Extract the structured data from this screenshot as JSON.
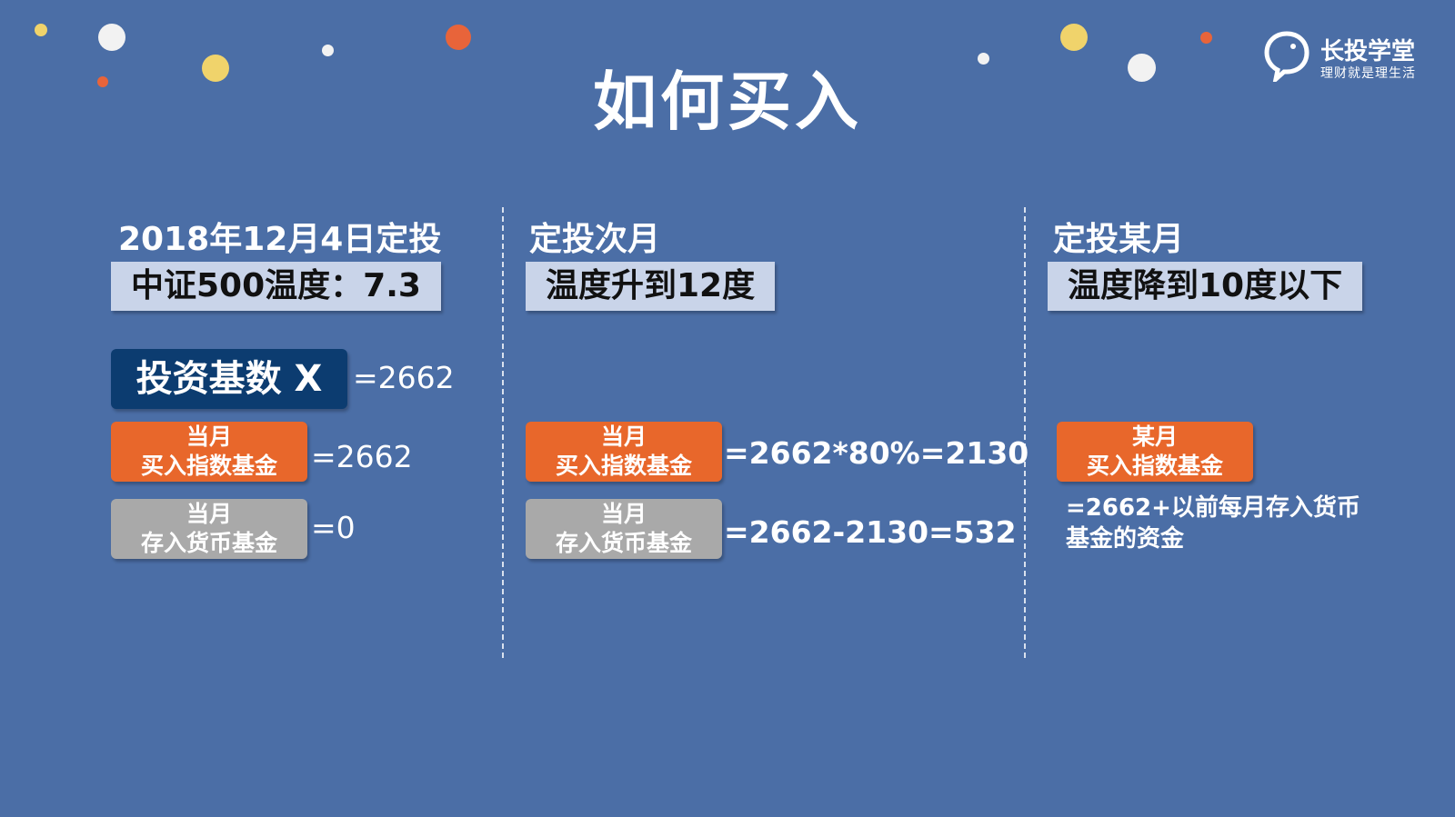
{
  "title": "如何买入",
  "logo": {
    "icon": "lightbulb-chat-icon",
    "name": "长投学堂",
    "slogan": "理财就是理生活"
  },
  "colors": {
    "background": "#4b6ea6",
    "base_box": "#0c3c70",
    "buy_box": "#e8672b",
    "deposit_box": "#a9a9a9",
    "temperature_box": "#c9d4e9"
  },
  "columns": [
    {
      "heading": "2018年12月4日定投",
      "temperature": "中证500温度：7.3",
      "base_label": "投资基数 X",
      "base_value": "=2662",
      "buy": {
        "line1": "当月",
        "line2": "买入指数基金",
        "value": "=2662"
      },
      "deposit": {
        "line1": "当月",
        "line2": "存入货币基金",
        "value": "=0"
      }
    },
    {
      "heading": "定投次月",
      "temperature": "温度升到12度",
      "buy": {
        "line1": "当月",
        "line2": "买入指数基金",
        "value": "=2662*80%=2130"
      },
      "deposit": {
        "line1": "当月",
        "line2": "存入货币基金",
        "value": "=2662-2130=532"
      }
    },
    {
      "heading": "定投某月",
      "temperature": "温度降到10度以下",
      "buy": {
        "line1": "某月",
        "line2": "买入指数基金"
      },
      "note": "=2662+以前每月存入货币基金的资金"
    }
  ]
}
